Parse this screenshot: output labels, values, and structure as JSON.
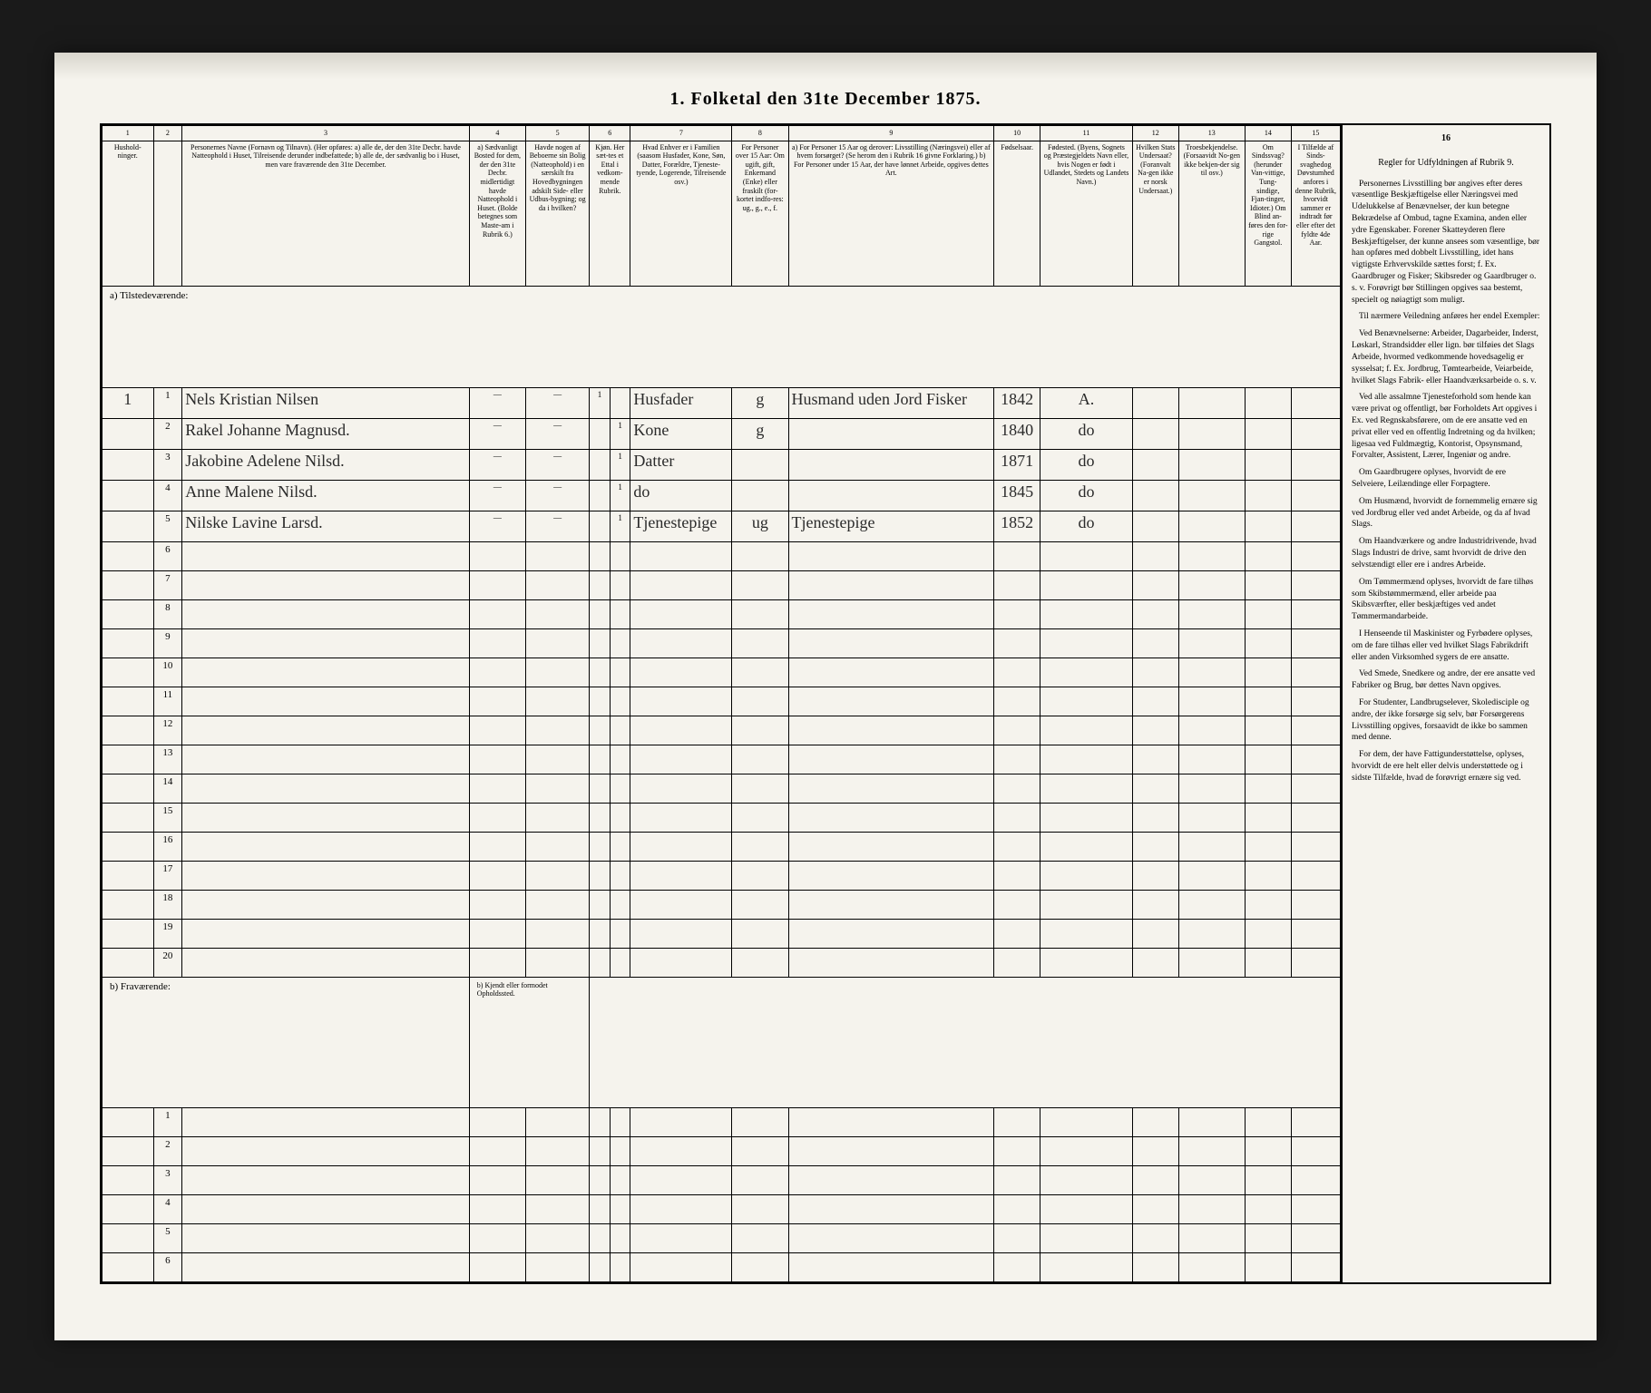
{
  "title": "1. Folketal den 31te December 1875.",
  "colnums": [
    "1",
    "2",
    "3",
    "4",
    "5",
    "6",
    "7",
    "8",
    "9",
    "10",
    "11",
    "12",
    "13",
    "14",
    "15",
    "16"
  ],
  "headers": {
    "c1": "Hushold-ninger.",
    "c2": "",
    "c3": "Personernes Navne (Fornavn og Tilnavn). (Her opføres: a) alle de, der den 31te Decbr. havde Natteophold i Huset, Tilreisende derunder indbefattede; b) alle de, der sædvanlig bo i Huset, men vare fraværende den 31te December.",
    "c4": "a) Sædvanligt Bosted for dem, der den 31te Decbr. midlertidigt havde Natteophold i Huset. (Bolde betegnes som Maste-am i Rubrik 6.)",
    "c5": "Havde nogen af Beboerne sin Bolig (Natteophold) i en særskilt fra Hovedbygningen adskilt Side- eller Udbus-bygning; og da i hvilken?",
    "c6": "Kjøn. Her sæt-tes et Ettal i vedkom-mende Rubrik.",
    "c7": "Hvad Enhver er i Familien (saasom Husfader, Kone, Søn, Datter, Forældre, Tjeneste-tyende, Logerende, Tilreisende osv.)",
    "c8": "For Personer over 15 Aar: Om ugift, gift, Enkemand (Enke) eller fraskilt (for-kortet indfo-res: ug., g., e., f.",
    "c9": "a) For Personer 15 Aar og derover: Livsstilling (Næringsvei) eller af hvem forsørget? (Se herom den i Rubrik 16 givne Forklaring.) b) For Personer under 15 Aar, der have lønnet Arbeide, opgives dettes Art.",
    "c10": "Fødselsaar.",
    "c11": "Fødested. (Byens, Sognets og Præstegjeldets Navn eller, hvis Nogen er født i Udlandet, Stedets og Landets Navn.)",
    "c12": "Hvilken Stats Undersaat? (Foranvalt Na-gen ikke er norsk Undersaat.)",
    "c13": "Troesbekjendelse. (Forsaavidt No-gen ikke bekjen-der sig til osv.)",
    "c14": "Om Sindssvag? (herunder Van-vittige, Tung-sindige, Fjan-tinger, Idioter.) Om Blind an-føres den for-rige Gangstol.",
    "c15": "I Tilfælde af Sinds-svaghedog Døvstumhed anfores i denne Rubrik, hvorvidt sammer er indtradt før eller efter det fyldte 4de Aar.",
    "c16": "Regler for Udfyldningen af Rubrik 9."
  },
  "section_a": "a) Tilstedeværende:",
  "section_b": "b) Fraværende:",
  "section_b_note": "b) Kjendt eller formodet Opholdssted.",
  "rows": [
    {
      "n": "1",
      "hh": "1",
      "name": "Nels Kristian Nilsen",
      "c4": "—",
      "c5": "—",
      "c6a": "1",
      "c6b": "",
      "c7": "Husfader",
      "c8": "g",
      "c9": "Husmand uden Jord Fisker",
      "c10": "1842",
      "c11": "A."
    },
    {
      "n": "2",
      "hh": "",
      "name": "Rakel Johanne Magnusd.",
      "c4": "—",
      "c5": "—",
      "c6a": "",
      "c6b": "1",
      "c7": "Kone",
      "c8": "g",
      "c9": "",
      "c10": "1840",
      "c11": "do"
    },
    {
      "n": "3",
      "hh": "",
      "name": "Jakobine Adelene Nilsd.",
      "c4": "—",
      "c5": "—",
      "c6a": "",
      "c6b": "1",
      "c7": "Datter",
      "c8": "",
      "c9": "",
      "c10": "1871",
      "c11": "do"
    },
    {
      "n": "4",
      "hh": "",
      "name": "Anne Malene Nilsd.",
      "c4": "—",
      "c5": "—",
      "c6a": "",
      "c6b": "1",
      "c7": "do",
      "c8": "",
      "c9": "",
      "c10": "1845",
      "c11": "do"
    },
    {
      "n": "5",
      "hh": "",
      "name": "Nilske Lavine Larsd.",
      "c4": "—",
      "c5": "—",
      "c6a": "",
      "c6b": "1",
      "c7": "Tjenestepige",
      "c8": "ug",
      "c9": "Tjenestepige",
      "c10": "1852",
      "c11": "do"
    }
  ],
  "empty_rows_a": [
    "6",
    "7",
    "8",
    "9",
    "10",
    "11",
    "12",
    "13",
    "14",
    "15",
    "16",
    "17",
    "18",
    "19",
    "20"
  ],
  "empty_rows_b": [
    "1",
    "2",
    "3",
    "4",
    "5",
    "6"
  ],
  "rules_title": "Regler for Udfyldningen af Rubrik 9.",
  "rules_paras": [
    "Personernes Livsstilling bør angives efter deres væsentlige Beskjæftigelse eller Næringsvei med Udelukkelse af Benævnelser, der kun betegne Bekrædelse af Ombud, tagne Examina, anden eller ydre Egenskaber. Forener Skatteyderen flere Beskjæftigelser, der kunne ansees som væsentlige, bør han opføres med dobbelt Livsstilling, idet hans vigtigste Erhvervskilde sættes forst; f. Ex. Gaardbruger og Fisker; Skibsreder og Gaardbruger o. s. v. Forøvrigt bør Stillingen opgives saa bestemt, specielt og nøiagtigt som muligt.",
    "Til nærmere Veiledning anføres her endel Exempler:",
    "Ved Benævnelserne: Arbeider, Dagarbeider, Inderst, Løskarl, Strandsidder eller lign. bør tilføies det Slags Arbeide, hvormed vedkommende hovedsagelig er sysselsat; f. Ex. Jordbrug, Tømtearbeide, Veiarbeide, hvilket Slags Fabrik- eller Haandværksarbeide o. s. v.",
    "Ved alle assalmne Tjenesteforhold som hende kan være privat og offentligt, bør Forholdets Art opgives i Ex. ved Regnskabsførere, om de ere ansatte ved en privat eller ved en offentlig Indretning og da hvilken; ligesaa ved Fuldmægtig, Kontorist, Opsynsmand, Forvalter, Assistent, Lærer, Ingeniør og andre.",
    "Om Gaardbrugere oplyses, hvorvidt de ere Selveiere, Leilændinge eller Forpagtere.",
    "Om Husmænd, hvorvidt de fornemmelig ernære sig ved Jordbrug eller ved andet Arbeide, og da af hvad Slags.",
    "Om Haandværkere og andre Industridrivende, hvad Slags Industri de drive, samt hvorvidt de drive den selvstændigt eller ere i andres Arbeide.",
    "Om Tømmermænd oplyses, hvorvidt de fare tilhøs som Skibstømmermænd, eller arbeide paa Skibsværfter, eller beskjæftiges ved andet Tømmermandarbeide.",
    "I Henseende til Maskinister og Fyrbødere oplyses, om de fare tilhøs eller ved hvilket Slags Fabrikdrift eller anden Virksomhed sygers de ere ansatte.",
    "Ved Smede, Snedkere og andre, der ere ansatte ved Fabriker og Brug, bør dettes Navn opgives.",
    "For Studenter, Landbrugselever, Skoledisciple og andre, der ikke forsørge sig selv, bør Forsørgerens Livsstilling opgives, forsaavidt de ikke bo sammen med denne.",
    "For dem, der have Fattigunderstøttelse, oplyses, hvorvidt de ere helt eller delvis understøttede og i sidste Tilfælde, hvad de forøvrigt ernære sig ved."
  ]
}
